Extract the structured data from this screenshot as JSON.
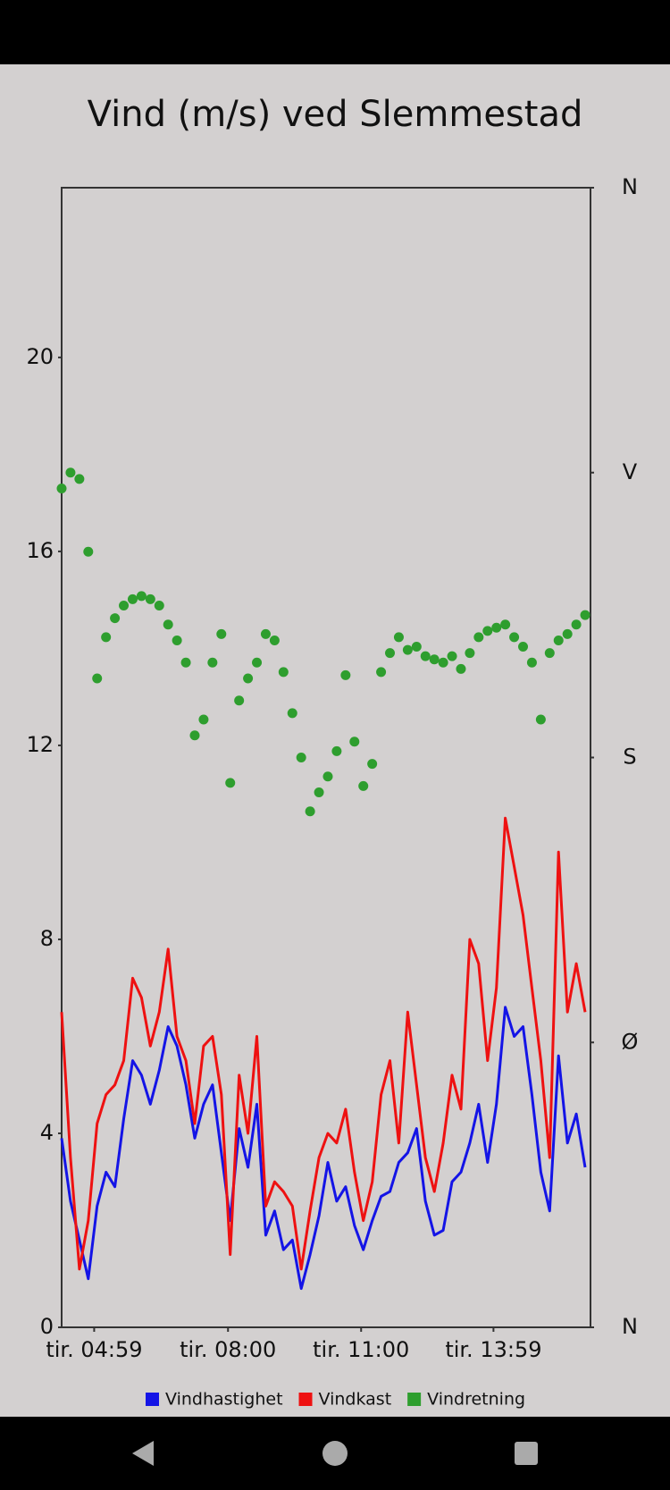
{
  "chart_data": {
    "type": "line",
    "title": "Vind (m/s) ved Slemmestad",
    "x": [
      4.25,
      4.45,
      4.65,
      4.85,
      5.05,
      5.25,
      5.45,
      5.65,
      5.85,
      6.05,
      6.25,
      6.45,
      6.65,
      6.85,
      7.05,
      7.25,
      7.45,
      7.65,
      7.85,
      8.05,
      8.25,
      8.45,
      8.65,
      8.85,
      9.05,
      9.25,
      9.45,
      9.65,
      9.85,
      10.05,
      10.25,
      10.45,
      10.65,
      10.85,
      11.05,
      11.25,
      11.45,
      11.65,
      11.85,
      12.05,
      12.25,
      12.45,
      12.65,
      12.85,
      13.05,
      13.25,
      13.45,
      13.65,
      13.85,
      14.05,
      14.25,
      14.45,
      14.65,
      14.85,
      15.05,
      15.25,
      15.45,
      15.65,
      15.85,
      16.05
    ],
    "xlim": [
      4.25,
      16.17
    ],
    "xticks": [
      {
        "value": 4.9833,
        "label": "tir. 04:59"
      },
      {
        "value": 8.0,
        "label": "tir. 08:00"
      },
      {
        "value": 11.0,
        "label": "tir. 11:00"
      },
      {
        "value": 13.9833,
        "label": "tir. 13:59"
      }
    ],
    "ylim": [
      0,
      23.5
    ],
    "yticks": [
      0,
      4,
      8,
      12,
      16,
      20
    ],
    "y2lim": [
      0,
      360
    ],
    "y2ticks": [
      {
        "value": 0,
        "label": "N"
      },
      {
        "value": 90,
        "label": "Ø"
      },
      {
        "value": 180,
        "label": "S"
      },
      {
        "value": 270,
        "label": "V"
      },
      {
        "value": 360,
        "label": "N"
      }
    ],
    "series": [
      {
        "name": "Vindhastighet",
        "color": "#1414e6",
        "values": [
          3.9,
          2.6,
          1.8,
          1.0,
          2.5,
          3.2,
          2.9,
          4.3,
          5.5,
          5.2,
          4.6,
          5.3,
          6.2,
          5.8,
          5.0,
          3.9,
          4.6,
          5.0,
          3.6,
          2.2,
          4.1,
          3.3,
          4.6,
          1.9,
          2.4,
          1.6,
          1.8,
          0.8,
          1.5,
          2.3,
          3.4,
          2.6,
          2.9,
          2.1,
          1.6,
          2.2,
          2.7,
          2.8,
          3.4,
          3.6,
          4.1,
          2.6,
          1.9,
          2.0,
          3.0,
          3.2,
          3.8,
          4.6,
          3.4,
          4.6,
          6.6,
          6.0,
          6.2,
          4.8,
          3.2,
          2.4,
          5.6,
          3.8,
          4.4,
          3.3
        ]
      },
      {
        "name": "Vindkast",
        "color": "#ee1111",
        "values": [
          6.5,
          3.5,
          1.2,
          2.2,
          4.2,
          4.8,
          5.0,
          5.5,
          7.2,
          6.8,
          5.8,
          6.5,
          7.8,
          6.0,
          5.5,
          4.2,
          5.8,
          6.0,
          4.8,
          1.5,
          5.2,
          4.0,
          6.0,
          2.5,
          3.0,
          2.8,
          2.5,
          1.2,
          2.4,
          3.5,
          4.0,
          3.8,
          4.5,
          3.2,
          2.2,
          3.0,
          4.8,
          5.5,
          3.8,
          6.5,
          5.0,
          3.5,
          2.8,
          3.8,
          5.2,
          4.5,
          8.0,
          7.5,
          5.5,
          7.0,
          10.5,
          9.5,
          8.5,
          7.0,
          5.5,
          3.5,
          9.8,
          6.5,
          7.5,
          6.5
        ]
      },
      {
        "name": "Vindretning",
        "color": "#2e9e2e",
        "axis": "y2",
        "type": "scatter",
        "values": [
          265,
          270,
          268,
          245,
          205,
          218,
          224,
          228,
          230,
          231,
          230,
          228,
          222,
          217,
          210,
          187,
          192,
          210,
          219,
          172,
          198,
          205,
          210,
          219,
          217,
          207,
          194,
          180,
          163,
          169,
          174,
          182,
          206,
          185,
          171,
          178,
          207,
          213,
          218,
          214,
          215,
          212,
          211,
          210,
          212,
          208,
          213,
          218,
          220,
          221,
          222,
          218,
          215,
          210,
          192,
          213,
          217,
          219,
          222,
          225
        ]
      }
    ]
  }
}
